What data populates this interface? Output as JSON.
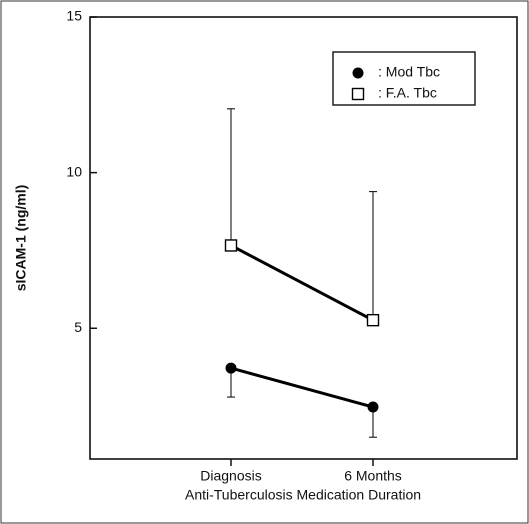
{
  "chart_data": {
    "type": "line",
    "x_label": "Anti-Tuberculosis Medication Duration",
    "y_label": "sICAM-1 (ng/ml)",
    "categories": [
      "Diagnosis",
      "6 Months"
    ],
    "series": [
      {
        "name": ": Mod Tbc",
        "color": "#000000",
        "marker": "filled-circle",
        "values": [
          3.72,
          2.47
        ],
        "errors": [
          0.93,
          0.97
        ],
        "error_direction": "lower"
      },
      {
        "name": ": F.A. Tbc",
        "color": "#000000",
        "marker": "open-square",
        "values": [
          7.66,
          5.26
        ],
        "errors": [
          4.39,
          4.13
        ],
        "error_direction": "upper"
      }
    ],
    "ylim": [
      0.8,
      15
    ],
    "yticks": [
      5,
      10,
      15
    ],
    "legend": "upper-right"
  }
}
